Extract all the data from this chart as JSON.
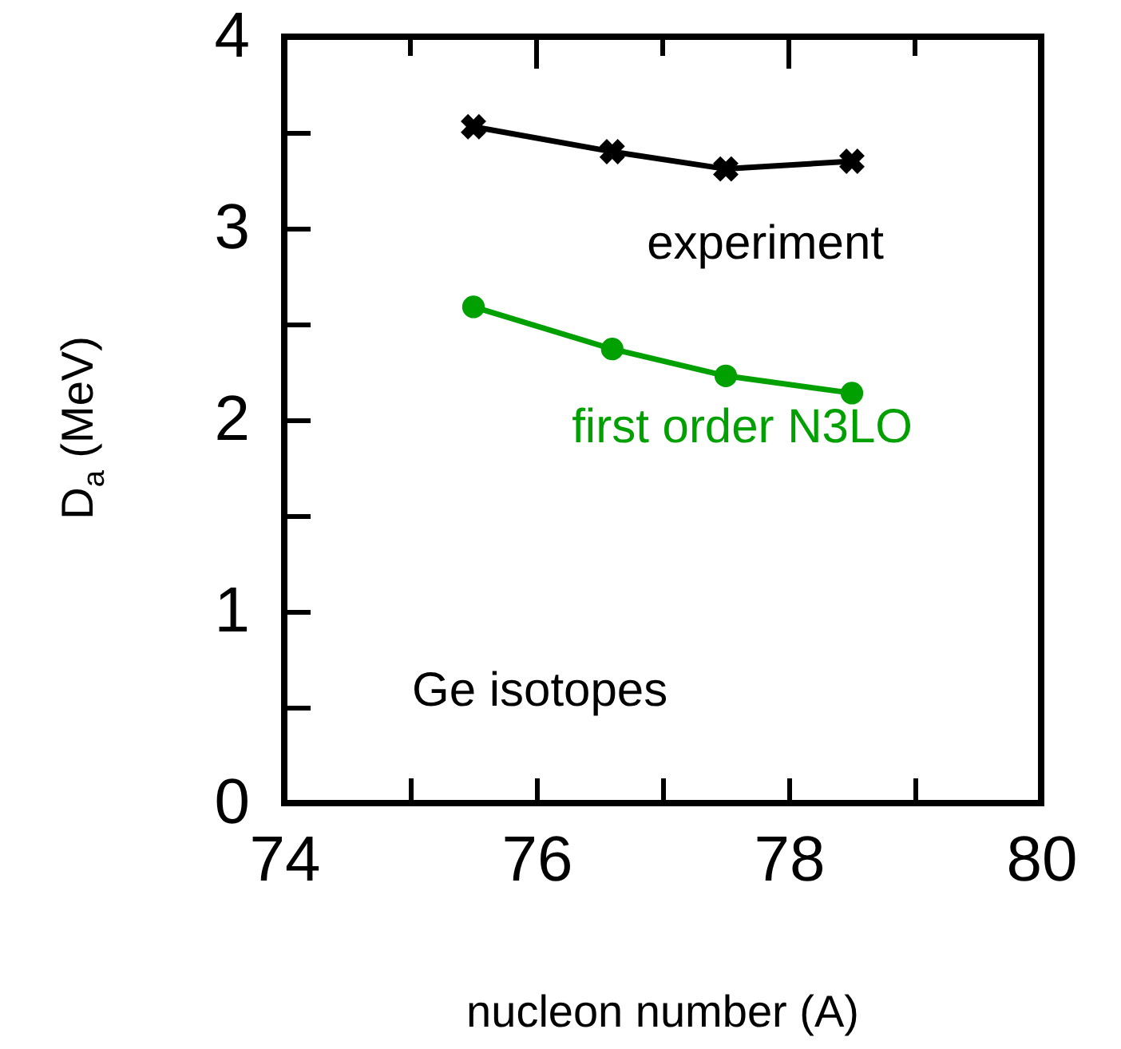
{
  "chart_data": {
    "type": "line",
    "xlabel": "nucleon number (A)",
    "ylabel": "D$_{a}$ (MeV)",
    "x": [
      75.5,
      76.6,
      77.5,
      78.5
    ],
    "series": [
      {
        "name": "experiment",
        "color": "#000000",
        "marker": "cross",
        "values": [
          3.53,
          3.4,
          3.31,
          3.35
        ]
      },
      {
        "name": "first order N3LO",
        "color": "#00a000",
        "marker": "circle",
        "values": [
          2.59,
          2.37,
          2.23,
          2.14
        ]
      }
    ],
    "xlim": [
      74,
      80
    ],
    "xticks": [
      74,
      {
        "value": 75,
        "label": null
      },
      76,
      {
        "value": 77,
        "label": null
      },
      78,
      {
        "value": 79,
        "label": null
      },
      80
    ],
    "ylim": [
      0,
      4
    ],
    "yticks": [
      0,
      {
        "value": 0.5,
        "label": null
      },
      1,
      {
        "value": 1.5,
        "label": null
      },
      2,
      {
        "value": 2.5,
        "label": null
      },
      3,
      {
        "value": 3.5,
        "label": null
      },
      4
    ],
    "annotations": [
      "Ge isotopes"
    ],
    "grid": false,
    "line_style": "solid"
  }
}
